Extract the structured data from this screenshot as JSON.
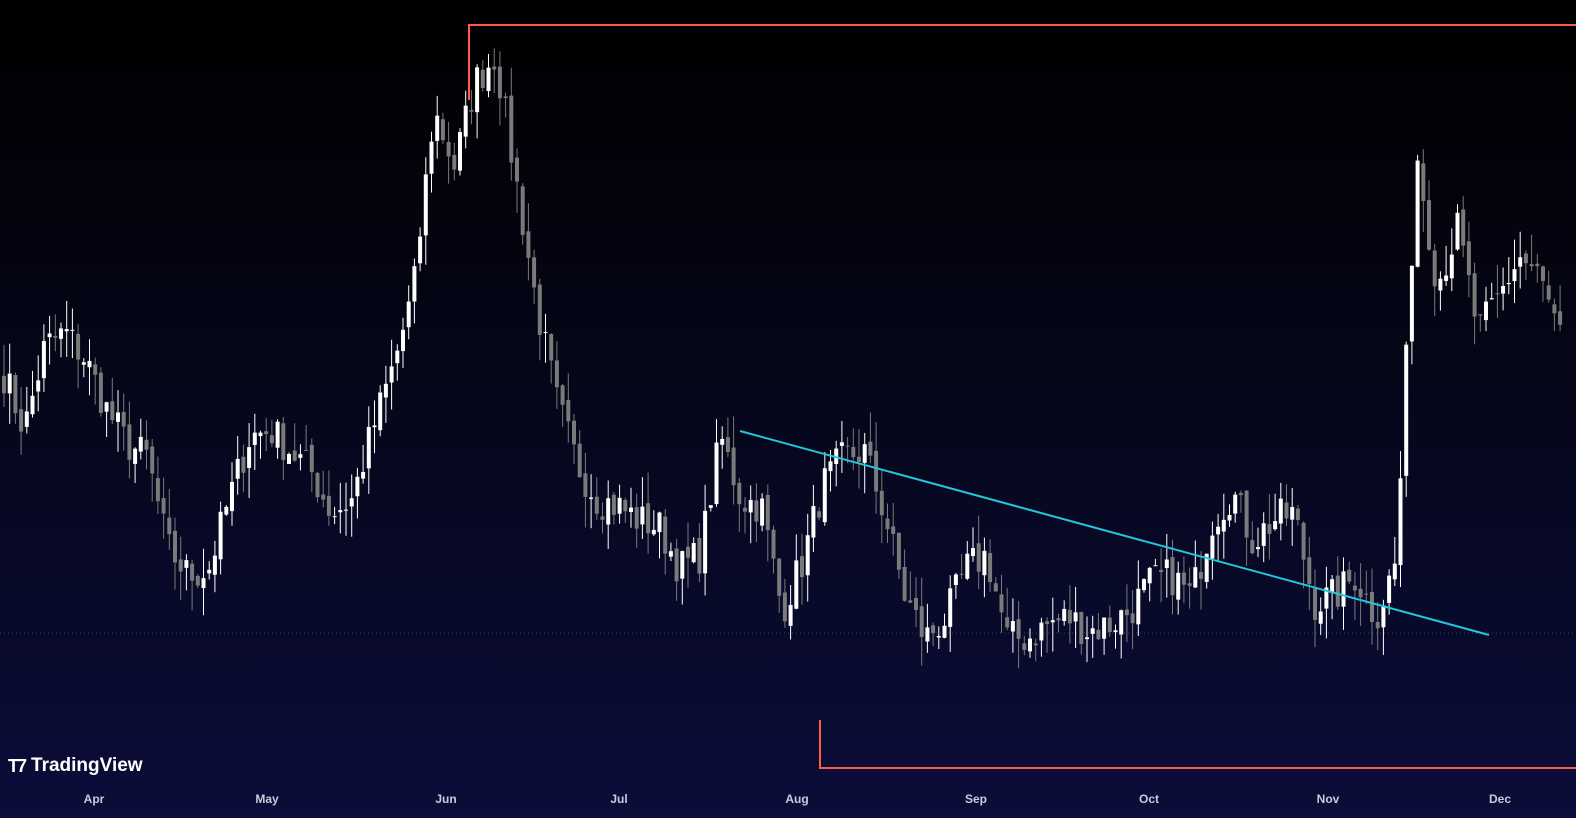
{
  "brand": {
    "name": "TradingView",
    "logo_icon": "tradingview-logo-icon"
  },
  "colors": {
    "bull": "#ffffff",
    "bear": "#7a7a7a",
    "trendline": "#22c7d9",
    "range_box": "#ff5a4a",
    "axis_text": "#c9cbd6",
    "dotted_line": "#3a3c58"
  },
  "chart_data": {
    "type": "candlestick",
    "x_axis": {
      "tick_labels": [
        "Apr",
        "May",
        "Jun",
        "Jul",
        "Aug",
        "Sep",
        "Oct",
        "Nov",
        "Dec"
      ]
    },
    "y_axis": {
      "visible": false,
      "range": [
        0.7,
        11.5
      ]
    },
    "grid": false,
    "approx_closes": [
      6.4,
      5.6,
      6.8,
      7.0,
      6.6,
      5.9,
      5.4,
      5.2,
      3.9,
      3.5,
      3.6,
      4.6,
      5.5,
      5.6,
      5.3,
      5.0,
      4.4,
      4.6,
      5.6,
      6.5,
      7.6,
      10.2,
      9.4,
      10.6,
      11.0,
      9.2,
      7.4,
      6.0,
      5.1,
      4.6,
      4.5,
      4.3,
      4.2,
      3.6,
      3.8,
      5.5,
      4.6,
      4.5,
      3.0,
      3.7,
      4.8,
      5.2,
      5.3,
      4.4,
      3.2,
      2.6,
      2.9,
      3.6,
      3.8,
      2.6,
      2.6,
      2.8,
      2.9,
      2.7,
      2.8,
      3.0,
      3.4,
      3.5,
      3.2,
      4.3,
      4.7,
      4.0,
      4.3,
      4.4,
      3.1,
      3.2,
      3.5,
      2.9,
      3.7,
      9.6,
      7.7,
      8.5,
      7.0,
      7.5,
      8.1,
      7.8,
      6.9
    ],
    "trendline": {
      "from": {
        "date": "Jul 22",
        "price": 6.7
      },
      "to": {
        "date": "Nov 28",
        "price": 3.6
      }
    },
    "range": {
      "high": 11.4,
      "low": 0.9
    }
  }
}
